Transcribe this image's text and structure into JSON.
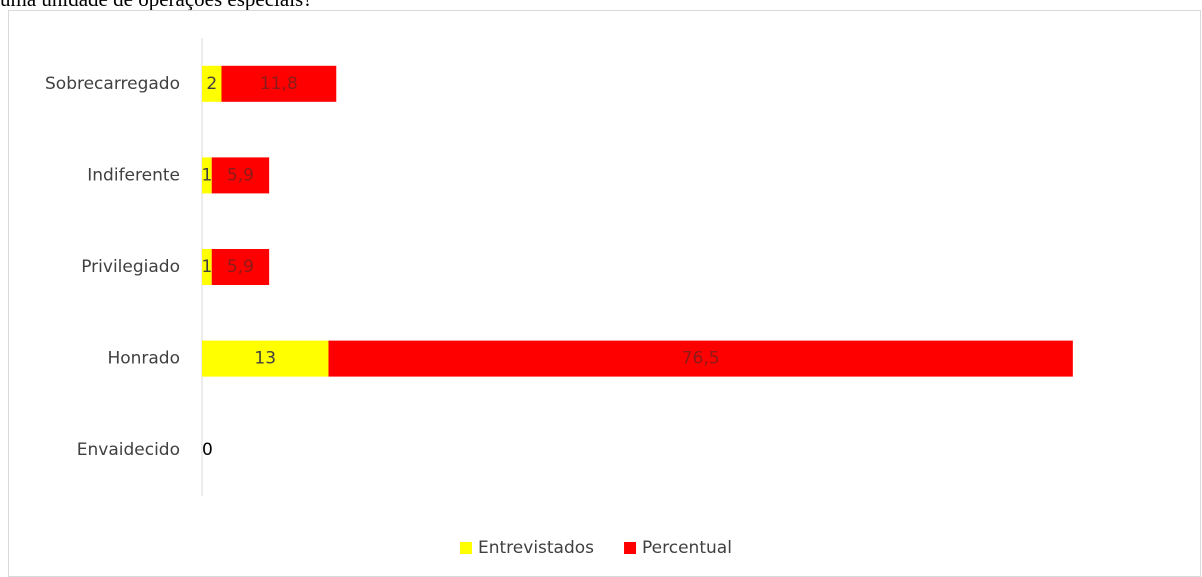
{
  "caption": "uma unidade de operações especiais?",
  "chart_data": {
    "type": "stacked-bar-horizontal",
    "categories": [
      "Sobrecarregado",
      "Indiferente",
      "Privilegiado",
      "Honrado",
      "Envaidecido"
    ],
    "series": [
      {
        "name": "Entrevistados",
        "color": "#ffff00",
        "values": [
          2,
          1,
          1,
          13,
          0
        ]
      },
      {
        "name": "Percentual",
        "color": "#ff0000",
        "values": [
          11.8,
          5.9,
          5.9,
          76.5,
          null
        ],
        "value_labels": [
          "11,8",
          "5,9",
          "5,9",
          "76,5",
          null
        ]
      }
    ],
    "xlim": [
      0,
      100
    ],
    "legend": "bottom"
  }
}
